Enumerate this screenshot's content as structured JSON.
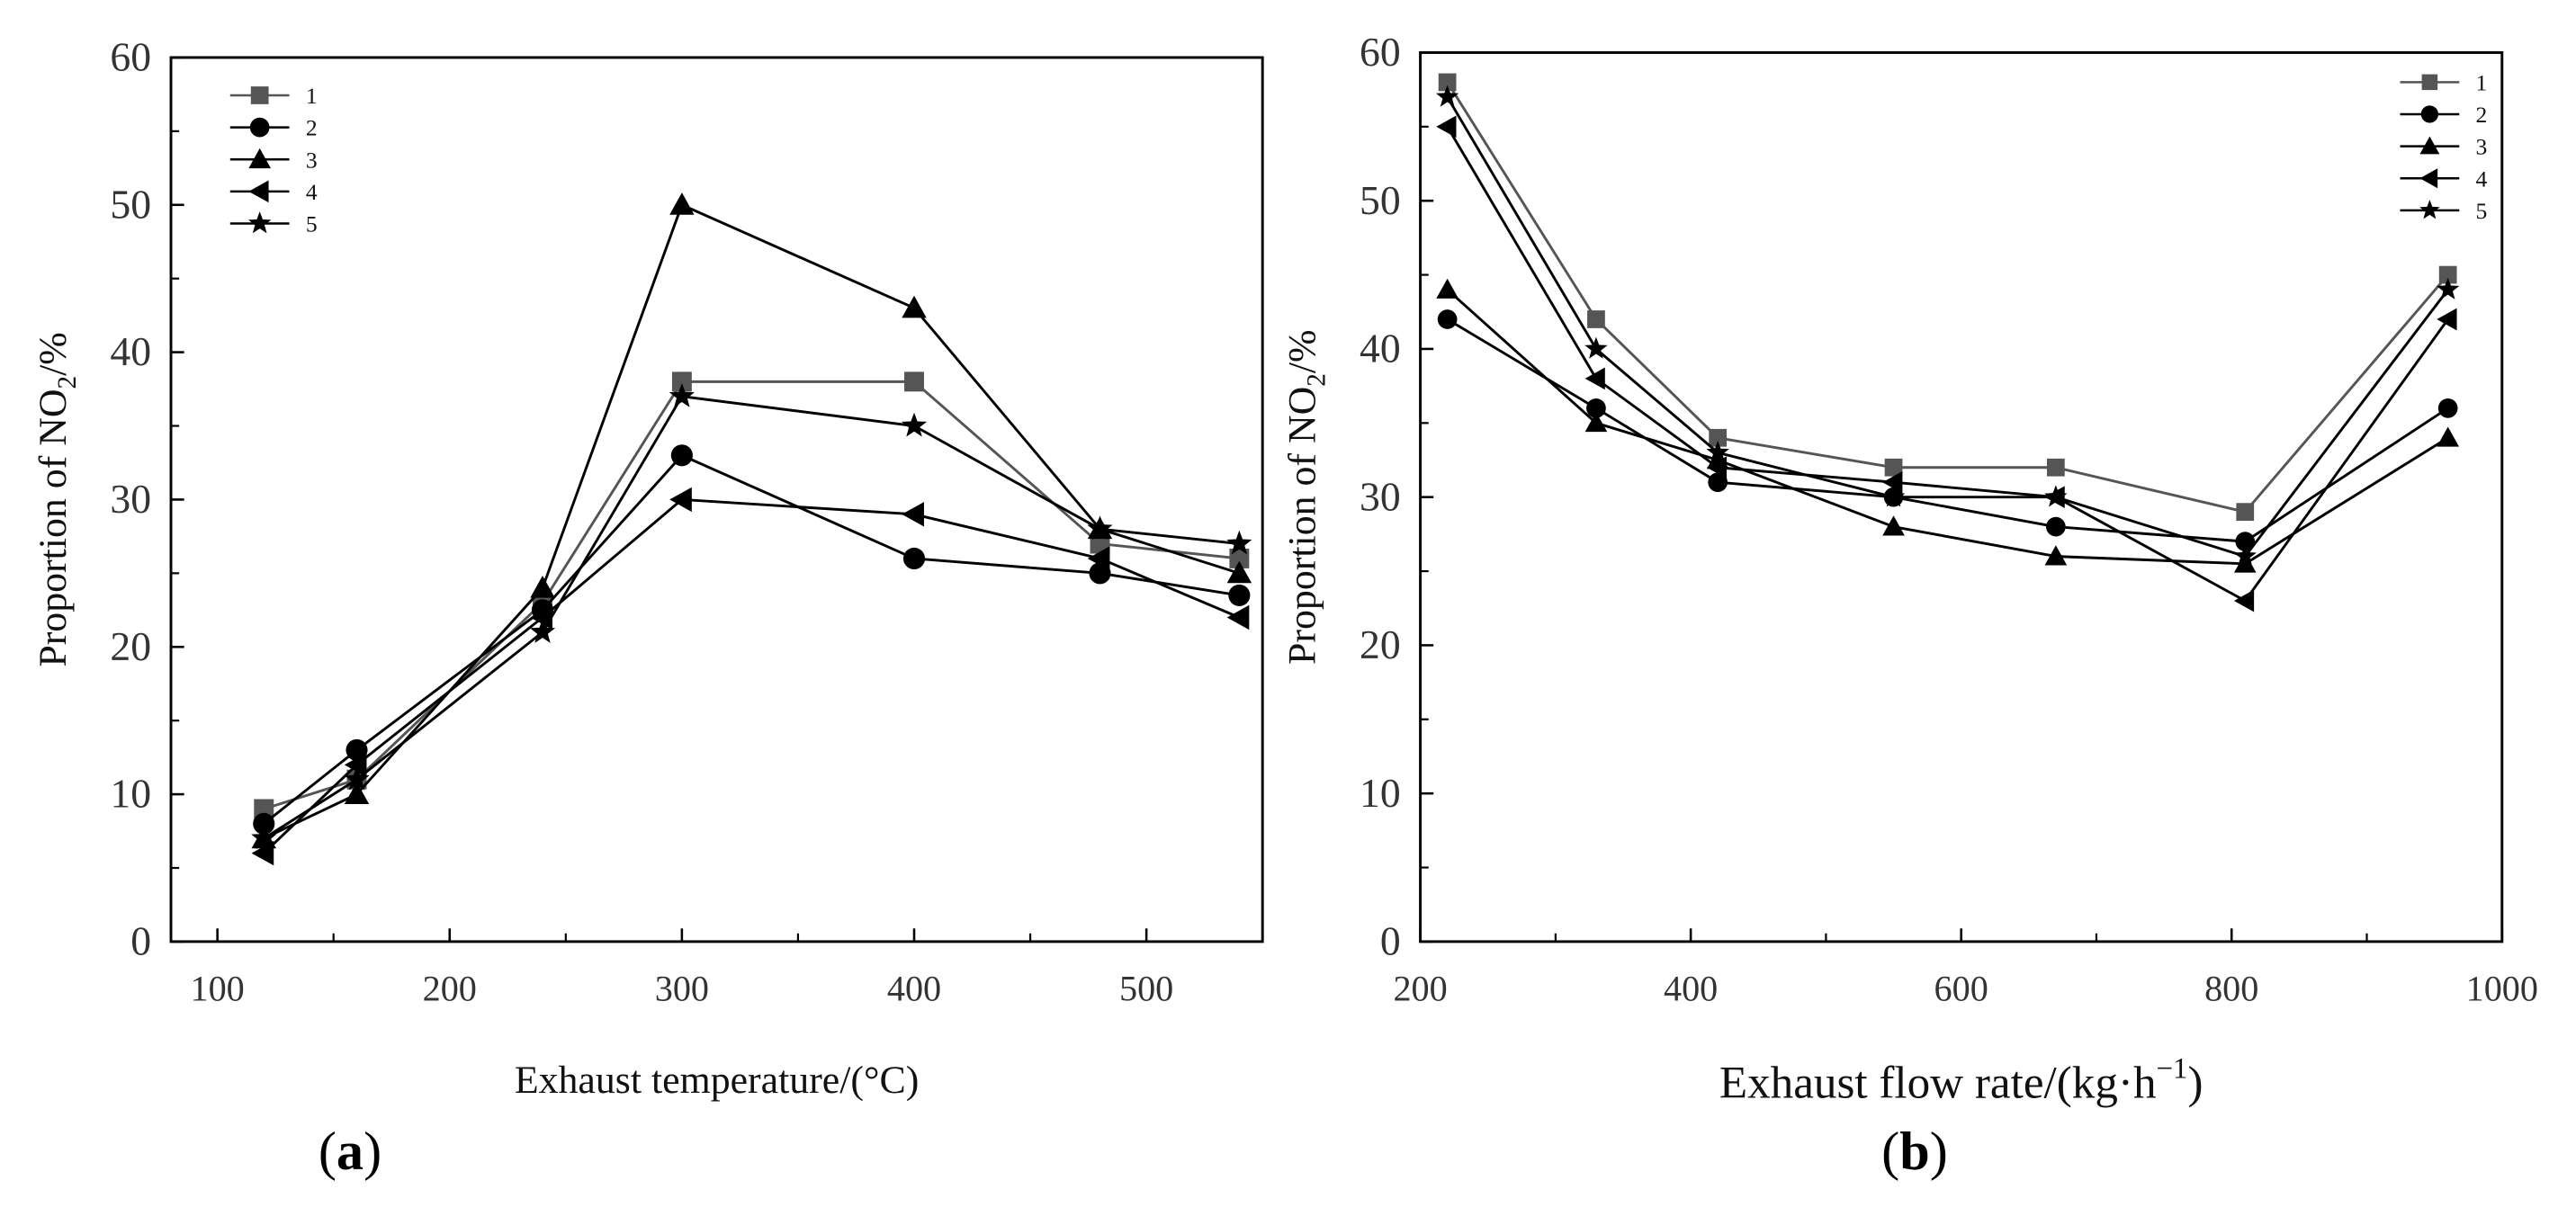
{
  "chart_data": [
    {
      "type": "line",
      "panel_label": "(a)",
      "panel_letter": "a",
      "xlabel": "Exhaust temperature/(°C)",
      "ylabel_prefix": "Proportion of NO",
      "ylabel_sub": "2",
      "ylabel_suffix": "/%",
      "xlim": [
        80,
        550
      ],
      "ylim": [
        0,
        60
      ],
      "xticks": [
        100,
        200,
        300,
        400,
        500
      ],
      "yticks": [
        0,
        10,
        20,
        30,
        40,
        50,
        60
      ],
      "legend_position": "top-left",
      "series": [
        {
          "name": "1",
          "marker": "square",
          "color": "#555555",
          "x": [
            120,
            160,
            240,
            300,
            400,
            480,
            540
          ],
          "y": [
            9,
            11,
            23,
            38,
            38,
            27,
            26
          ]
        },
        {
          "name": "2",
          "marker": "circle",
          "color": "#000000",
          "x": [
            120,
            160,
            240,
            300,
            400,
            480,
            540
          ],
          "y": [
            8,
            13,
            22.5,
            33,
            26,
            25,
            23.5
          ]
        },
        {
          "name": "3",
          "marker": "triangle-up",
          "color": "#000000",
          "x": [
            120,
            160,
            240,
            300,
            400,
            480,
            540
          ],
          "y": [
            7,
            10,
            24,
            50,
            43,
            28,
            25
          ]
        },
        {
          "name": "4",
          "marker": "triangle-left",
          "color": "#000000",
          "x": [
            120,
            160,
            240,
            300,
            400,
            480,
            540
          ],
          "y": [
            6,
            12,
            22,
            30,
            29,
            26,
            22
          ]
        },
        {
          "name": "5",
          "marker": "star",
          "color": "#000000",
          "x": [
            120,
            160,
            240,
            300,
            400,
            480,
            540
          ],
          "y": [
            7,
            11,
            21,
            37,
            35,
            28,
            27
          ]
        }
      ]
    },
    {
      "type": "line",
      "panel_label": "(b)",
      "panel_letter": "b",
      "xlabel": "Exhaust flow rate/(kg·h",
      "xlabel_sup": "−1",
      "xlabel_close": ")",
      "ylabel_prefix": "Proportion of NO",
      "ylabel_sub": "2",
      "ylabel_suffix": "/%",
      "xlim": [
        200,
        1000
      ],
      "ylim": [
        0,
        60
      ],
      "xticks": [
        200,
        400,
        600,
        800,
        1000
      ],
      "yticks": [
        0,
        10,
        20,
        30,
        40,
        50,
        60
      ],
      "legend_position": "top-right",
      "series": [
        {
          "name": "1",
          "marker": "square",
          "color": "#555555",
          "x": [
            220,
            330,
            420,
            550,
            670,
            810,
            960
          ],
          "y": [
            58,
            42,
            34,
            32,
            32,
            29,
            45
          ]
        },
        {
          "name": "2",
          "marker": "circle",
          "color": "#000000",
          "x": [
            220,
            330,
            420,
            550,
            670,
            810,
            960
          ],
          "y": [
            42,
            36,
            31,
            30,
            28,
            27,
            36
          ]
        },
        {
          "name": "3",
          "marker": "triangle-up",
          "color": "#000000",
          "x": [
            220,
            330,
            420,
            550,
            670,
            810,
            960
          ],
          "y": [
            44,
            35,
            32.5,
            28,
            26,
            25.5,
            34
          ]
        },
        {
          "name": "4",
          "marker": "triangle-left",
          "color": "#000000",
          "x": [
            220,
            330,
            420,
            550,
            670,
            810,
            960
          ],
          "y": [
            55,
            38,
            32,
            31,
            30,
            23,
            42
          ]
        },
        {
          "name": "5",
          "marker": "star",
          "color": "#000000",
          "x": [
            220,
            330,
            420,
            550,
            670,
            810,
            960
          ],
          "y": [
            57,
            40,
            33,
            30,
            30,
            26,
            44
          ]
        }
      ]
    }
  ]
}
